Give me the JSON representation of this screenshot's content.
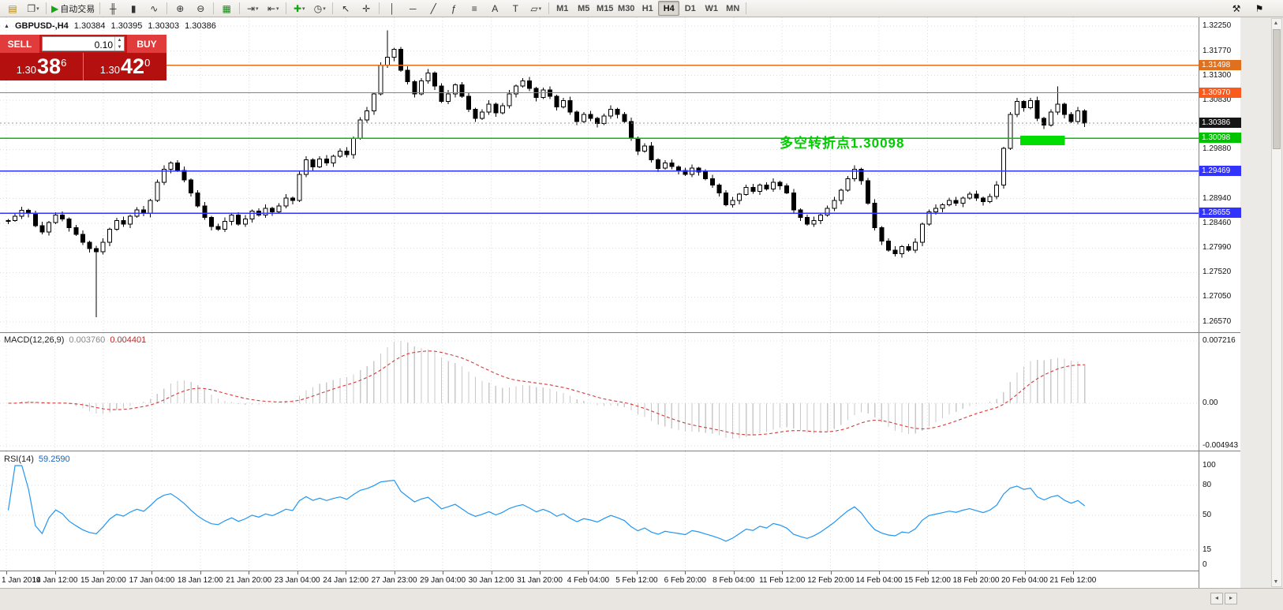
{
  "toolbar": {
    "groups": [
      {
        "name": "file",
        "buttons": [
          {
            "name": "new-order",
            "glyph": "▤",
            "color": "#b8860b"
          },
          {
            "name": "new-chart",
            "glyph": "❐",
            "color": "#444",
            "dropdown": true
          }
        ]
      },
      {
        "name": "autotrade",
        "buttons": [
          {
            "name": "autotrading",
            "glyph": "▶",
            "color": "#18a318",
            "label": "自动交易"
          }
        ]
      },
      {
        "name": "chart-types",
        "buttons": [
          {
            "name": "bar-chart",
            "glyph": "╫",
            "color": "#333"
          },
          {
            "name": "candlestick-chart",
            "glyph": "▮",
            "color": "#333"
          },
          {
            "name": "line-chart",
            "glyph": "∿",
            "color": "#333"
          }
        ]
      },
      {
        "name": "zoom",
        "buttons": [
          {
            "name": "zoom-in",
            "glyph": "⊕",
            "color": "#333"
          },
          {
            "name": "zoom-out",
            "glyph": "⊖",
            "color": "#333"
          }
        ]
      },
      {
        "name": "windows",
        "buttons": [
          {
            "name": "tile-windows",
            "glyph": "▦",
            "color": "#1c8a1c"
          }
        ]
      },
      {
        "name": "scroll",
        "buttons": [
          {
            "name": "auto-scroll",
            "glyph": "⇥",
            "color": "#333",
            "dropdown": true
          },
          {
            "name": "chart-shift",
            "glyph": "⇤",
            "color": "#333",
            "dropdown": true
          }
        ]
      },
      {
        "name": "indicators",
        "buttons": [
          {
            "name": "indicators",
            "glyph": "✚",
            "color": "#18a318",
            "dropdown": true
          },
          {
            "name": "periods",
            "glyph": "◷",
            "color": "#333",
            "dropdown": true
          }
        ]
      },
      {
        "name": "cursor-tools",
        "buttons": [
          {
            "name": "cursor",
            "glyph": "↖",
            "color": "#333"
          },
          {
            "name": "crosshair",
            "glyph": "✛",
            "color": "#333"
          }
        ]
      },
      {
        "name": "draw-tools",
        "buttons": [
          {
            "name": "vertical-line",
            "glyph": "│",
            "color": "#333"
          },
          {
            "name": "horizontal-line",
            "glyph": "─",
            "color": "#333"
          },
          {
            "name": "trendline",
            "glyph": "╱",
            "color": "#333"
          },
          {
            "name": "fibonacci",
            "glyph": "ƒ",
            "color": "#333"
          },
          {
            "name": "objects-list",
            "glyph": "≡",
            "color": "#333"
          },
          {
            "name": "text",
            "glyph": "A",
            "color": "#333"
          },
          {
            "name": "text-label",
            "glyph": "T",
            "color": "#333"
          },
          {
            "name": "shapes",
            "glyph": "▱",
            "color": "#333",
            "dropdown": true
          }
        ]
      }
    ],
    "timeframes": {
      "items": [
        "M1",
        "M5",
        "M15",
        "M30",
        "H1",
        "H4",
        "D1",
        "W1",
        "MN"
      ],
      "active": "H4"
    },
    "right_buttons": [
      {
        "name": "settings",
        "glyph": "⚒"
      },
      {
        "name": "alerts",
        "glyph": "⚑"
      }
    ]
  },
  "symbol_header": {
    "collapse_icon": "▲",
    "title": "GBPUSD-,H4",
    "open": "1.30384",
    "high": "1.30395",
    "low": "1.30303",
    "close": "1.30386"
  },
  "trade_panel": {
    "sell_label": "SELL",
    "buy_label": "BUY",
    "volume": "0.10",
    "sell_price": {
      "prefix": "1.30",
      "big": "38",
      "sup": "6"
    },
    "buy_price": {
      "prefix": "1.30",
      "big": "42",
      "sup": "0"
    }
  },
  "annotation": {
    "text": "多空转折点1.30098",
    "color": "#00cc00"
  },
  "indicators": {
    "macd": {
      "label": "MACD(12,26,9)",
      "value_main": "0.003760",
      "value_signal": "0.004401",
      "axis": [
        "0.007216",
        "0.00",
        "-0.004943"
      ]
    },
    "rsi": {
      "label": "RSI(14)",
      "value": "59.2590",
      "axis": [
        100,
        80,
        50,
        15,
        0
      ]
    }
  },
  "chart_data": [
    {
      "type": "candlestick",
      "symbol": "GBPUSD",
      "timeframe": "H4",
      "closes": [
        1.2852,
        1.286,
        1.2871,
        1.2865,
        1.2842,
        1.283,
        1.2848,
        1.2862,
        1.2855,
        1.2838,
        1.2825,
        1.281,
        1.2798,
        1.2792,
        1.281,
        1.2835,
        1.2852,
        1.2845,
        1.286,
        1.2872,
        1.2865,
        1.289,
        1.2925,
        1.295,
        1.2962,
        1.2948,
        1.293,
        1.2905,
        1.288,
        1.2858,
        1.284,
        1.2835,
        1.285,
        1.2862,
        1.2845,
        1.2855,
        1.287,
        1.2862,
        1.2875,
        1.2868,
        1.288,
        1.2895,
        1.289,
        1.294,
        1.2968,
        1.2955,
        1.297,
        1.2962,
        1.2975,
        1.2985,
        1.2978,
        1.301,
        1.3045,
        1.3062,
        1.3095,
        1.315,
        1.3165,
        1.318,
        1.314,
        1.3118,
        1.3095,
        1.312,
        1.3135,
        1.311,
        1.308,
        1.3095,
        1.3112,
        1.309,
        1.3065,
        1.3048,
        1.306,
        1.3075,
        1.3058,
        1.3072,
        1.3095,
        1.311,
        1.312,
        1.3105,
        1.3088,
        1.3102,
        1.309,
        1.307,
        1.3082,
        1.306,
        1.3042,
        1.3055,
        1.3048,
        1.3038,
        1.3052,
        1.3065,
        1.3055,
        1.3042,
        1.301,
        1.2985,
        1.2995,
        1.2968,
        1.2952,
        1.2962,
        1.2955,
        1.2948,
        1.294,
        1.2952,
        1.2945,
        1.2932,
        1.292,
        1.2905,
        1.2882,
        1.289,
        1.2902,
        1.2915,
        1.2908,
        1.292,
        1.2912,
        1.2925,
        1.2918,
        1.2905,
        1.2872,
        1.2858,
        1.2845,
        1.2852,
        1.2862,
        1.2875,
        1.289,
        1.291,
        1.2932,
        1.295,
        1.2928,
        1.2885,
        1.2838,
        1.2812,
        1.2795,
        1.2788,
        1.2802,
        1.2795,
        1.281,
        1.2845,
        1.2868,
        1.2875,
        1.2882,
        1.289,
        1.2885,
        1.2895,
        1.2902,
        1.2895,
        1.2888,
        1.2898,
        1.292,
        1.299,
        1.3055,
        1.308,
        1.3068,
        1.3082,
        1.3048,
        1.3035,
        1.306,
        1.3075,
        1.3055,
        1.3042,
        1.3062,
        1.30386
      ],
      "spikes": [
        {
          "index": 13,
          "price": 1.2666
        },
        {
          "index": 56,
          "price": 1.3217
        },
        {
          "index": 155,
          "price": 1.3109
        }
      ],
      "y_axis": {
        "ticks": [
          "1.32250",
          "1.31770",
          "1.31300",
          "1.30830",
          "1.30350",
          "1.29880",
          "1.29410",
          "1.28940",
          "1.28460",
          "1.27990",
          "1.27520",
          "1.27050",
          "1.26570"
        ]
      },
      "levels": [
        {
          "label": "1.31498",
          "price": 1.31498,
          "color": "#e0701e"
        },
        {
          "label": "1.30970",
          "price": 1.3097,
          "color": "#fa5a1e"
        },
        {
          "label": "1.30098",
          "price": 1.30098,
          "color": "#00c300"
        },
        {
          "label": "1.29469",
          "price": 1.29469,
          "color": "#3333ff"
        },
        {
          "label": "1.28655",
          "price": 1.28655,
          "color": "#3333ff"
        }
      ],
      "current_price": {
        "label": "1.30386",
        "price": 1.30386,
        "color": "#161616"
      },
      "highlight": {
        "start_index": 150,
        "end_index": 156,
        "top_price": 1.30145,
        "bottom_price": 1.29963,
        "color": "#00dd00"
      }
    },
    {
      "type": "macd",
      "label": "MACD(12,26,9)",
      "derived_from": "closes",
      "fast": 12,
      "slow": 26,
      "signal": 9,
      "axis_max": 0.007216,
      "axis_min": -0.004943,
      "current_main": 0.00376,
      "current_signal": 0.004401
    },
    {
      "type": "rsi",
      "label": "RSI(14)",
      "period": 14,
      "current": 59.259,
      "levels": [
        80,
        50,
        15
      ],
      "range": [
        0,
        100
      ]
    }
  ],
  "time_axis": {
    "labels": [
      "1 Jan 2019",
      "14 Jan 12:00",
      "15 Jan 20:00",
      "17 Jan 04:00",
      "18 Jan 12:00",
      "21 Jan 20:00",
      "23 Jan 04:00",
      "24 Jan 12:00",
      "27 Jan 23:00",
      "29 Jan 04:00",
      "30 Jan 12:00",
      "31 Jan 20:00",
      "4 Feb 04:00",
      "5 Feb 12:00",
      "6 Feb 20:00",
      "8 Feb 04:00",
      "11 Feb 12:00",
      "12 Feb 20:00",
      "14 Feb 04:00",
      "15 Feb 12:00",
      "18 Feb 20:00",
      "20 Feb 04:00",
      "21 Feb 12:00"
    ]
  }
}
